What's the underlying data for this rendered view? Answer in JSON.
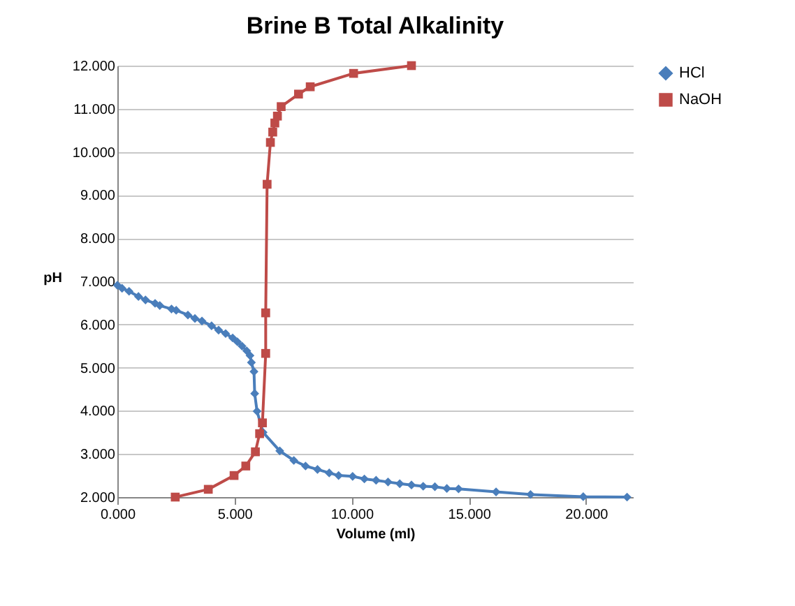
{
  "chart_data": {
    "type": "line",
    "title": "Brine B Total Alkalinity",
    "xlabel": "Volume (ml)",
    "ylabel": "pH",
    "xlim": [
      0,
      22
    ],
    "xticks": [
      {
        "value": 0,
        "label": "0.000"
      },
      {
        "value": 5,
        "label": "5.000"
      },
      {
        "value": 10,
        "label": "10.000"
      },
      {
        "value": 15,
        "label": "15.000"
      },
      {
        "value": 20,
        "label": "20.000"
      }
    ],
    "ylim": [
      2,
      12
    ],
    "yticks": [
      {
        "value": 2,
        "label": "2.000"
      },
      {
        "value": 3,
        "label": "3.000"
      },
      {
        "value": 4,
        "label": "4.000"
      },
      {
        "value": 5,
        "label": "5.000"
      },
      {
        "value": 6,
        "label": "6.000"
      },
      {
        "value": 7,
        "label": "7.000"
      },
      {
        "value": 8,
        "label": "8.000"
      },
      {
        "value": 9,
        "label": "9.000"
      },
      {
        "value": 10,
        "label": "10.000"
      },
      {
        "value": 11,
        "label": "11.000"
      },
      {
        "value": 12,
        "label": "12.000"
      }
    ],
    "grid": "y",
    "legend": "right",
    "series": [
      {
        "name": "HCl",
        "color": "#4a7ebb",
        "marker": "diamond",
        "x": [
          0,
          0.2,
          0.5,
          0.9,
          1.2,
          1.61,
          1.81,
          2.31,
          2.51,
          3.01,
          3.31,
          3.61,
          4.02,
          4.32,
          4.62,
          4.92,
          5.12,
          5.32,
          5.52,
          5.66,
          5.72,
          5.83,
          5.86,
          5.96,
          6.22,
          6.93,
          7.53,
          8.03,
          8.54,
          9.04,
          9.44,
          10.04,
          10.54,
          11.04,
          11.55,
          12.05,
          12.55,
          13.05,
          13.55,
          14.06,
          14.56,
          16.16,
          17.63,
          19.88,
          21.75
        ],
        "values": [
          6.91,
          6.84,
          6.77,
          6.65,
          6.57,
          6.49,
          6.44,
          6.36,
          6.33,
          6.22,
          6.14,
          6.08,
          5.97,
          5.87,
          5.79,
          5.69,
          5.6,
          5.5,
          5.39,
          5.28,
          5.12,
          4.91,
          4.4,
          3.99,
          3.5,
          3.07,
          2.85,
          2.72,
          2.64,
          2.56,
          2.5,
          2.48,
          2.42,
          2.39,
          2.35,
          2.31,
          2.28,
          2.25,
          2.24,
          2.2,
          2.19,
          2.12,
          2.06,
          2.01,
          2.0
        ]
      },
      {
        "name": "NaOH",
        "color": "#be4b48",
        "marker": "square",
        "x": [
          2.47,
          3.88,
          4.98,
          5.48,
          5.89,
          6.07,
          6.19,
          6.33,
          6.33,
          6.39,
          6.53,
          6.63,
          6.72,
          6.83,
          6.99,
          7.73,
          8.23,
          10.08,
          12.55
        ],
        "values": [
          2.0,
          2.18,
          2.5,
          2.72,
          3.05,
          3.47,
          3.72,
          5.33,
          6.27,
          9.25,
          10.22,
          10.46,
          10.67,
          10.83,
          11.05,
          11.34,
          11.51,
          11.82,
          12.0
        ]
      }
    ]
  }
}
